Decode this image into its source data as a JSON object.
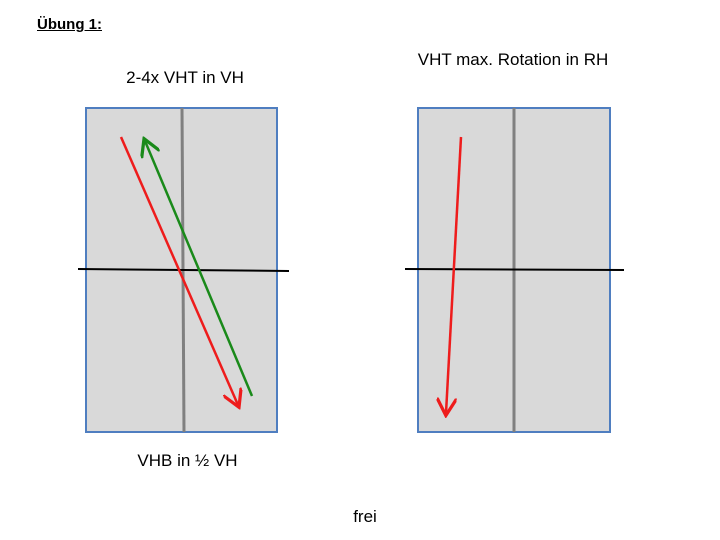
{
  "title": "Übung 1:",
  "left_panel": {
    "top_label": "2-4x VHT in VH",
    "bottom_label": "VHB in ½ VH",
    "arrows": [
      {
        "color": "#ee1c1c",
        "direction": "down"
      },
      {
        "color": "#1a8a1a",
        "direction": "up"
      }
    ]
  },
  "right_panel": {
    "top_label": "VHT max. Rotation in RH",
    "arrows": [
      {
        "color": "#ee1c1c",
        "direction": "down"
      }
    ]
  },
  "footer": "frei",
  "colors": {
    "panel_fill": "#d9d9d9",
    "panel_border": "#4f7ec0",
    "center_line": "#808080",
    "horizontal_line": "#000000",
    "red_arrow": "#ee1c1c",
    "green_arrow": "#1a8a1a"
  }
}
